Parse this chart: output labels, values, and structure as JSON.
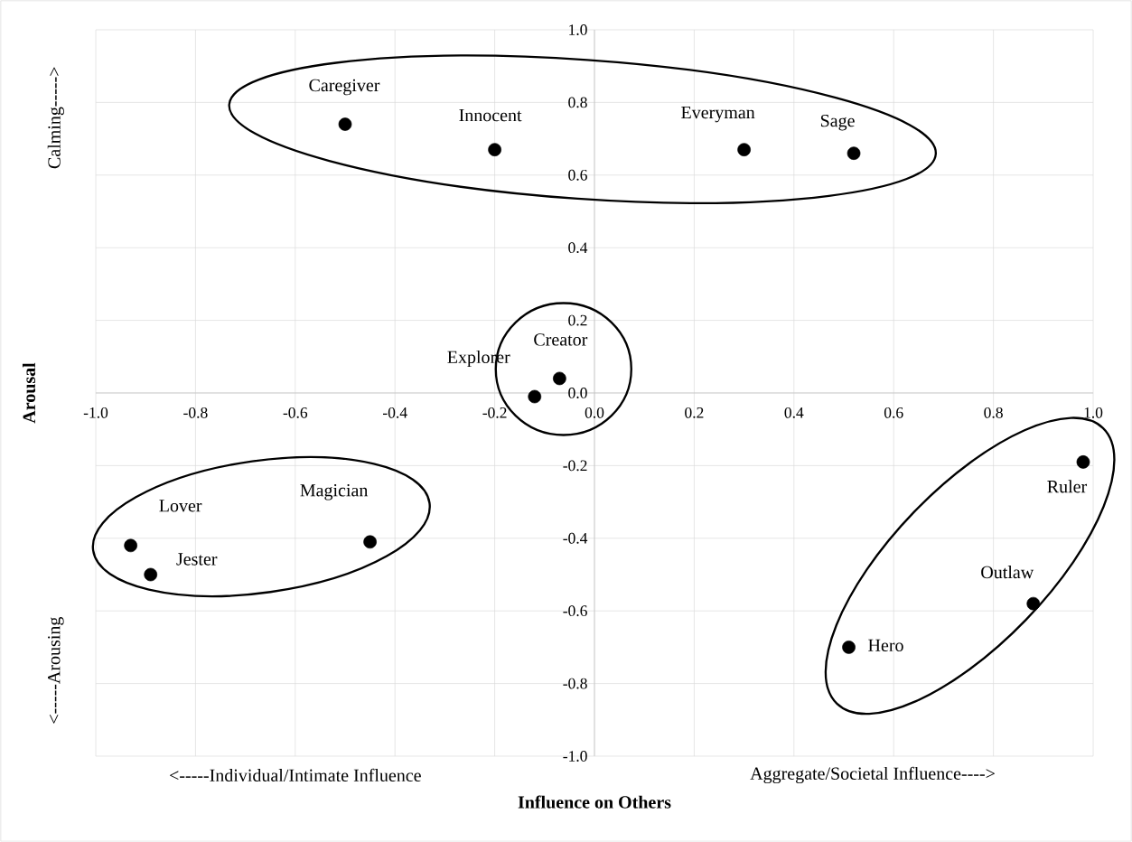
{
  "chart_data": {
    "type": "scatter",
    "xlabel": "Influence on Others",
    "ylabel": "Arousal",
    "x": [
      -0.5,
      -0.2,
      0.3,
      0.52,
      -0.07,
      -0.12,
      -0.93,
      -0.89,
      -0.45,
      0.98,
      0.88,
      0.51
    ],
    "values": [
      0.74,
      0.67,
      0.67,
      0.66,
      0.04,
      -0.01,
      -0.42,
      -0.5,
      -0.41,
      -0.19,
      -0.58,
      -0.7
    ],
    "value_labels": [
      "Caregiver",
      "Innocent",
      "Everyman",
      "Sage",
      "Creator",
      "Explorer",
      "Lover",
      "Jester",
      "Magician",
      "Ruler",
      "Outlaw",
      "Hero"
    ],
    "color": "#000000",
    "marker": "circle",
    "grid": true,
    "xlim": [
      -1,
      1
    ],
    "ylim": [
      -1,
      1
    ],
    "xticks": [
      {
        "value": -1,
        "label": "-1.0"
      },
      {
        "value": -0.8,
        "label": "-0.8"
      },
      {
        "value": -0.6,
        "label": "-0.6"
      },
      {
        "value": -0.4,
        "label": "-0.4"
      },
      {
        "value": -0.2,
        "label": "-0.2"
      },
      {
        "value": 0,
        "label": "0.0"
      },
      {
        "value": 0.2,
        "label": "0.2"
      },
      {
        "value": 0.4,
        "label": "0.4"
      },
      {
        "value": 0.6,
        "label": "0.6"
      },
      {
        "value": 0.8,
        "label": "0.8"
      },
      {
        "value": 1,
        "label": "1.0"
      }
    ],
    "yticks": [
      {
        "value": -1,
        "label": "-1.0"
      },
      {
        "value": -0.8,
        "label": "-0.8"
      },
      {
        "value": -0.6,
        "label": "-0.6"
      },
      {
        "value": -0.4,
        "label": "-0.4"
      },
      {
        "value": -0.2,
        "label": "-0.2"
      },
      {
        "value": 0,
        "label": "0.0"
      },
      {
        "value": 0.2,
        "label": "0.2"
      },
      {
        "value": 0.4,
        "label": "0.4"
      },
      {
        "value": 0.6,
        "label": "0.6"
      },
      {
        "value": 0.8,
        "label": "0.8"
      },
      {
        "value": 1,
        "label": "1.0"
      }
    ],
    "annotations": [
      "<-----Individual/Intimate Influence",
      "Aggregate/Societal Influence---->",
      "Calming----->",
      "<-----Arousing"
    ]
  }
}
